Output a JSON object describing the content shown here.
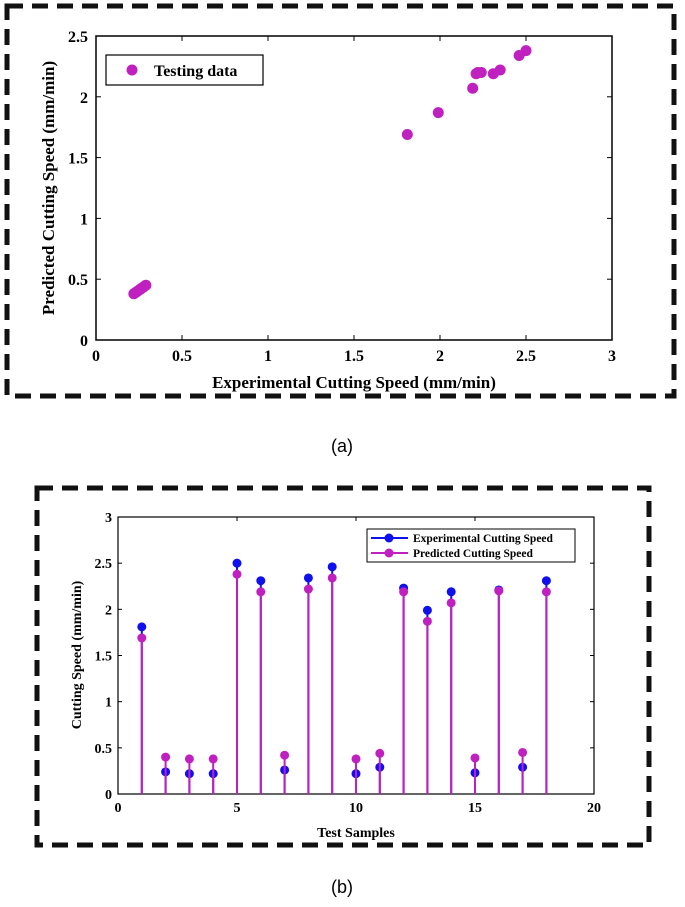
{
  "colors": {
    "magenta": "#c020c0",
    "blue": "#1010ee",
    "frame": "#111111"
  },
  "chart_data": [
    {
      "type": "scatter",
      "xlabel": "Experimental Cutting Speed (mm/min)",
      "ylabel": "Predicted Cutting Speed (mm/min)",
      "xlim": [
        0,
        3
      ],
      "ylim": [
        0,
        2.5
      ],
      "xticks": [
        0,
        0.5,
        1,
        1.5,
        2,
        2.5,
        3
      ],
      "yticks": [
        0,
        0.5,
        1,
        1.5,
        2,
        2.5
      ],
      "legend_position": "top-left",
      "caption": "(a)",
      "series": [
        {
          "name": "Testing data",
          "points": [
            [
              0.22,
              0.38
            ],
            [
              0.23,
              0.39
            ],
            [
              0.24,
              0.4
            ],
            [
              0.25,
              0.41
            ],
            [
              0.26,
              0.42
            ],
            [
              0.27,
              0.43
            ],
            [
              0.28,
              0.44
            ],
            [
              0.29,
              0.45
            ],
            [
              1.81,
              1.69
            ],
            [
              1.99,
              1.87
            ],
            [
              2.19,
              2.07
            ],
            [
              2.21,
              2.19
            ],
            [
              2.22,
              2.2
            ],
            [
              2.24,
              2.2
            ],
            [
              2.31,
              2.19
            ],
            [
              2.35,
              2.22
            ],
            [
              2.46,
              2.34
            ],
            [
              2.5,
              2.38
            ]
          ]
        }
      ]
    },
    {
      "type": "stem",
      "xlabel": "Test Samples",
      "ylabel": "Cutting Speed (mm/min)",
      "xlim": [
        0,
        20
      ],
      "ylim": [
        0,
        3
      ],
      "xticks": [
        0,
        5,
        10,
        15,
        20
      ],
      "yticks": [
        0,
        0.5,
        1,
        1.5,
        2,
        2.5,
        3
      ],
      "legend_position": "top-right",
      "caption": "(b)",
      "x": [
        1,
        2,
        3,
        4,
        5,
        6,
        7,
        8,
        9,
        10,
        11,
        12,
        13,
        14,
        15,
        16,
        17,
        18
      ],
      "series": [
        {
          "name": "Experimental Cutting Speed",
          "values": [
            1.81,
            0.24,
            0.22,
            0.22,
            2.5,
            2.31,
            0.26,
            2.34,
            2.46,
            0.22,
            0.29,
            2.23,
            1.99,
            2.19,
            0.23,
            2.21,
            0.29,
            2.31
          ]
        },
        {
          "name": "Predicted Cutting Speed",
          "values": [
            1.69,
            0.4,
            0.38,
            0.38,
            2.38,
            2.19,
            0.42,
            2.22,
            2.34,
            0.38,
            0.44,
            2.19,
            1.87,
            2.07,
            0.39,
            2.2,
            0.45,
            2.19
          ]
        }
      ]
    }
  ]
}
